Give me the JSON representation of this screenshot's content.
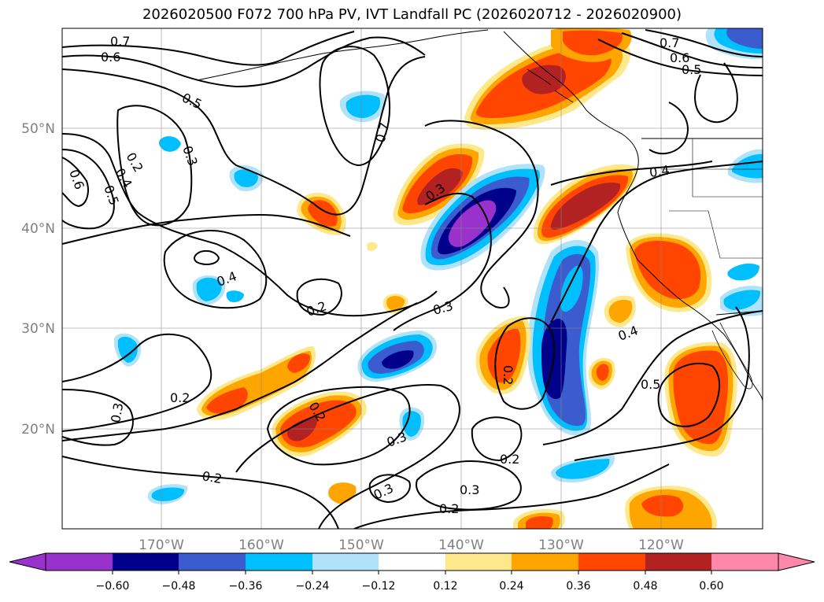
{
  "title": "2026020500 F072 700 hPa PV, IVT Landfall PC (2026020712 - 2026020900)",
  "axes": {
    "lon_labels": [
      "170°W",
      "160°W",
      "150°W",
      "140°W",
      "130°W",
      "120°W"
    ],
    "lat_labels": [
      "50°N",
      "40°N",
      "30°N",
      "20°N"
    ]
  },
  "colorbar": {
    "tick_labels": [
      "−0.60",
      "−0.48",
      "−0.36",
      "−0.24",
      "−0.12",
      "0.12",
      "0.24",
      "0.36",
      "0.48",
      "0.60"
    ],
    "bins": [
      {
        "name": "below-neg-0.60",
        "color": "#9932cc"
      },
      {
        "name": "neg-0.60-to-neg-0.48",
        "color": "#00008b"
      },
      {
        "name": "neg-0.48-to-neg-0.36",
        "color": "#3a5ccf"
      },
      {
        "name": "neg-0.36-to-neg-0.24",
        "color": "#00bfff"
      },
      {
        "name": "neg-0.24-to-neg-0.12",
        "color": "#b0e2fa"
      },
      {
        "name": "neg-0.12-to-0.12",
        "color": "#ffffff"
      },
      {
        "name": "0.12-to-0.24",
        "color": "#fde98b"
      },
      {
        "name": "0.24-to-0.36",
        "color": "#ffa500"
      },
      {
        "name": "0.36-to-0.48",
        "color": "#ff4500"
      },
      {
        "name": "0.48-to-0.60",
        "color": "#b22222"
      },
      {
        "name": "above-0.60",
        "color": "#ff88aa"
      }
    ]
  },
  "contour_labels": [
    "0.7",
    "0.6",
    "0.5",
    "0.3",
    "0.2",
    "0.4",
    "0.5",
    "0.6",
    "0.7",
    "0.3",
    "0.4",
    "0.2",
    "0.3",
    "0.2",
    "0.2",
    "0.3",
    "0.2",
    "0.3",
    "0.2",
    "0.3",
    "0.2",
    "0.2",
    "0.3",
    "0.4",
    "0.5",
    "0.7",
    "0.6",
    "0.5",
    "0.4"
  ]
}
